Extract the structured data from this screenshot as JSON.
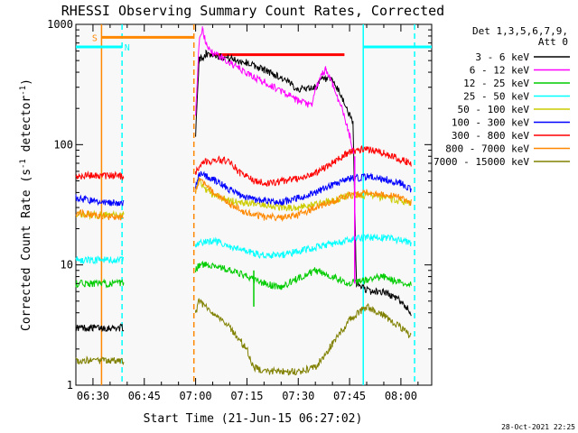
{
  "chart_data": {
    "type": "line",
    "title": "RHESSI Observing Summary Count Rates, Corrected",
    "xlabel": "Start Time (21-Jun-15 06:27:02)",
    "ylabel": "Corrected Count Rate (s⁻¹ detector⁻¹)",
    "ylabel_parts": {
      "main": "Corrected Count Rate (s",
      "exp1": "-1",
      "mid": " detector",
      "exp2": "-1",
      "end": ")"
    },
    "x_unit": "minutes from 06:27:02",
    "xlim": [
      0,
      104
    ],
    "ylim": [
      1,
      1000
    ],
    "y_scale": "log",
    "x_ticks": [
      {
        "x": 5,
        "label": "06:30"
      },
      {
        "x": 20,
        "label": "06:45"
      },
      {
        "x": 35,
        "label": "07:00"
      },
      {
        "x": 50,
        "label": "07:15"
      },
      {
        "x": 65,
        "label": "07:30"
      },
      {
        "x": 80,
        "label": "07:45"
      },
      {
        "x": 95,
        "label": "08:00"
      }
    ],
    "y_ticks": [
      {
        "y": 1,
        "label": "1"
      },
      {
        "y": 10,
        "label": "10"
      },
      {
        "y": 100,
        "label": "100"
      },
      {
        "y": 1000,
        "label": "1000"
      }
    ],
    "legend": {
      "placement": "right",
      "header": [
        "Det 1,3,5,6,7,9,",
        "Att 0"
      ]
    },
    "series": [
      {
        "name": "3 - 6 keV",
        "color": "#000000",
        "x": [
          0,
          5,
          10,
          14,
          35,
          36,
          38,
          40,
          45,
          50,
          55,
          60,
          65,
          70,
          72,
          75,
          78,
          81,
          82,
          86,
          90,
          95,
          98
        ],
        "y": [
          3,
          3,
          3,
          3,
          120,
          500,
          570,
          560,
          520,
          480,
          420,
          360,
          290,
          300,
          350,
          340,
          240,
          150,
          7,
          6,
          6,
          5,
          4
        ]
      },
      {
        "name": "6 - 12 keV",
        "color": "#ff00ff",
        "x": [
          35,
          36,
          37,
          38,
          40,
          45,
          50,
          55,
          60,
          65,
          69,
          70,
          72,
          73,
          75,
          78,
          80,
          81.5
        ],
        "y": [
          180,
          700,
          900,
          700,
          580,
          480,
          390,
          330,
          280,
          230,
          210,
          290,
          380,
          430,
          320,
          190,
          120,
          80
        ]
      },
      {
        "name": "12 - 25 keV",
        "color": "#00cc00",
        "x": [
          0,
          5,
          10,
          14,
          35,
          36,
          40,
          45,
          50,
          55,
          60,
          62,
          66,
          70,
          75,
          80,
          85,
          90,
          95,
          98
        ],
        "y": [
          7,
          7,
          7,
          7,
          9,
          10,
          10,
          9,
          8,
          7,
          6.5,
          7,
          8,
          9,
          8,
          7,
          7.5,
          8,
          7,
          7
        ]
      },
      {
        "name": "25 - 50 keV",
        "color": "#00ffff",
        "x": [
          0,
          5,
          10,
          14,
          35,
          36,
          40,
          45,
          50,
          55,
          60,
          65,
          70,
          75,
          80,
          85,
          90,
          95,
          98
        ],
        "y": [
          11,
          11,
          11,
          11,
          14,
          15,
          16,
          14,
          13,
          12,
          12,
          13,
          14,
          15,
          16,
          17,
          17,
          16,
          15
        ]
      },
      {
        "name": "50 - 100 keV",
        "color": "#cccc00",
        "x": [
          0,
          5,
          10,
          14,
          35,
          36,
          38,
          40,
          45,
          50,
          55,
          60,
          65,
          70,
          75,
          80,
          85,
          90,
          95,
          98
        ],
        "y": [
          26,
          26,
          26,
          26,
          42,
          50,
          42,
          38,
          34,
          33,
          32,
          30,
          30,
          32,
          34,
          38,
          38,
          36,
          34,
          33
        ]
      },
      {
        "name": "100 - 300 keV",
        "color": "#0000ff",
        "x": [
          0,
          5,
          10,
          14,
          35,
          36,
          38,
          42,
          45,
          50,
          55,
          60,
          65,
          70,
          75,
          80,
          85,
          90,
          95,
          98
        ],
        "y": [
          36,
          34,
          33,
          33,
          45,
          58,
          55,
          48,
          42,
          36,
          34,
          33,
          36,
          40,
          46,
          52,
          54,
          52,
          48,
          42
        ]
      },
      {
        "name": "300 - 800 keV",
        "color": "#ff0000",
        "x": [
          0,
          5,
          10,
          14,
          35,
          36,
          38,
          42,
          45,
          48,
          52,
          55,
          58,
          60,
          65,
          70,
          75,
          80,
          85,
          90,
          95,
          98
        ],
        "y": [
          55,
          55,
          55,
          55,
          60,
          65,
          72,
          75,
          72,
          58,
          50,
          48,
          48,
          50,
          52,
          58,
          70,
          88,
          92,
          85,
          75,
          70
        ]
      },
      {
        "name": "800 - 7000 keV",
        "color": "#ff8800",
        "x": [
          0,
          5,
          10,
          14,
          35,
          36,
          40,
          45,
          50,
          55,
          60,
          65,
          70,
          75,
          80,
          85,
          90,
          95,
          98
        ],
        "y": [
          27,
          26,
          25,
          25,
          40,
          52,
          40,
          32,
          27,
          25,
          25,
          26,
          30,
          34,
          38,
          40,
          39,
          36,
          33
        ]
      },
      {
        "name": "7000 - 15000 keV",
        "color": "#808000",
        "x": [
          0,
          5,
          10,
          14,
          35,
          36,
          40,
          45,
          50,
          52,
          55,
          60,
          65,
          70,
          75,
          80,
          85,
          90,
          95,
          98
        ],
        "y": [
          1.6,
          1.6,
          1.6,
          1.6,
          4,
          5,
          4,
          3,
          2,
          1.4,
          1.3,
          1.3,
          1.3,
          1.4,
          2.2,
          3.5,
          4.5,
          3.8,
          3,
          2.5
        ]
      }
    ],
    "spikes": [
      {
        "color": "#ff00ff",
        "x": 81.5,
        "y_from": 80,
        "y_to": 7
      },
      {
        "color": "#00cc00",
        "x": 52,
        "y_from": 4.5,
        "y_to": 9
      }
    ],
    "markers": [
      {
        "kind": "vline",
        "style": "solid",
        "color": "#ff8800",
        "x": 7.5
      },
      {
        "kind": "vline",
        "style": "dashed",
        "color": "#00ffff",
        "x": 13.5
      },
      {
        "kind": "vline",
        "style": "dashed",
        "color": "#ff8800",
        "x": 34.5
      },
      {
        "kind": "vline",
        "style": "solid",
        "color": "#00ffff",
        "x": 84
      },
      {
        "kind": "vline",
        "style": "dashed",
        "color": "#00ffff",
        "x": 99
      },
      {
        "kind": "hbar",
        "color": "#00ffff",
        "x0": 0,
        "x1": 13.5,
        "y": 650,
        "label": "N",
        "label_x": 15,
        "label_y": 650
      },
      {
        "kind": "hbar",
        "color": "#ff8800",
        "x0": 7.5,
        "x1": 34.5,
        "y": 780,
        "label": "S",
        "label_x": 5.5,
        "label_y": 780
      },
      {
        "kind": "hbar",
        "color": "#ff0000",
        "x0": 39,
        "x1": 78.5,
        "y": 560,
        "label": "",
        "label_x": 0,
        "label_y": 0
      },
      {
        "kind": "hbar",
        "color": "#00ffff",
        "x0": 84,
        "x1": 104,
        "y": 650,
        "label": "",
        "label_x": 0,
        "label_y": 0
      }
    ],
    "timestamp": "28-Oct-2021 22:25"
  }
}
